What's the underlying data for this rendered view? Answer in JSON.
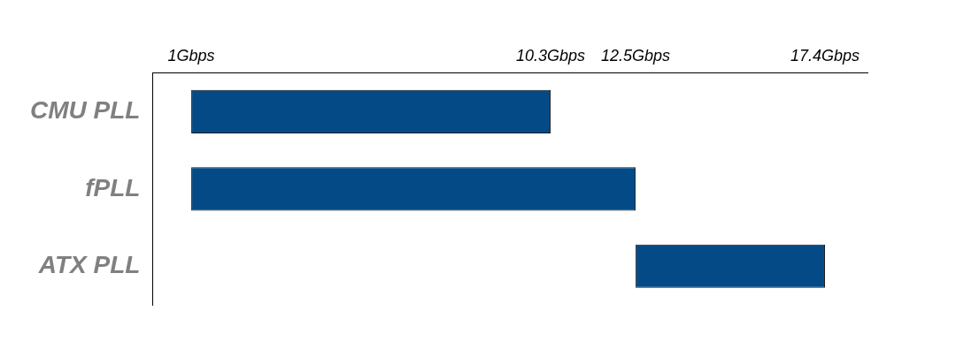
{
  "chart_data": {
    "type": "bar",
    "orientation": "horizontal",
    "categories": [
      "CMU PLL",
      "fPLL",
      "ATX PLL"
    ],
    "base": [
      1,
      1,
      12.5
    ],
    "values": [
      9.3,
      11.5,
      4.9
    ],
    "color": "#044a87",
    "xlim": [
      0,
      18.5
    ],
    "xticks": [
      {
        "value": 1,
        "label": "1Gbps"
      },
      {
        "value": 10.3,
        "label": "10.3Gbps"
      },
      {
        "value": 12.5,
        "label": "12.5Gbps"
      },
      {
        "value": 17.4,
        "label": "17.4Gbps"
      }
    ],
    "grid": false,
    "legend": false
  }
}
